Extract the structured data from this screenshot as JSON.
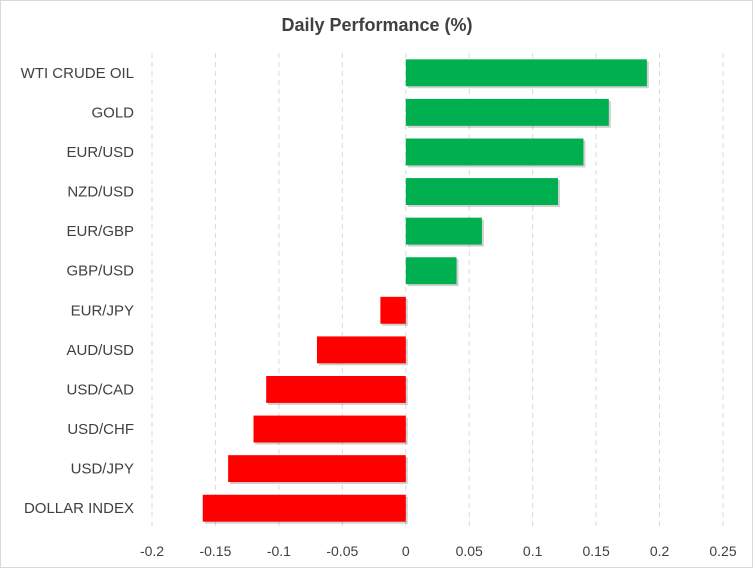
{
  "chart_data": {
    "type": "bar",
    "orientation": "horizontal",
    "title": "Daily Performance (%)",
    "categories": [
      "WTI CRUDE OIL",
      "GOLD",
      "EUR/USD",
      "NZD/USD",
      "EUR/GBP",
      "GBP/USD",
      "EUR/JPY",
      "AUD/USD",
      "USD/CAD",
      "USD/CHF",
      "USD/JPY",
      "DOLLAR INDEX"
    ],
    "values": [
      0.19,
      0.16,
      0.14,
      0.12,
      0.06,
      0.04,
      -0.02,
      -0.07,
      -0.11,
      -0.12,
      -0.14,
      -0.16
    ],
    "xlim": [
      -0.2,
      0.25
    ],
    "xticks": [
      -0.2,
      -0.15,
      -0.1,
      -0.05,
      0,
      0.05,
      0.1,
      0.15,
      0.2,
      0.25
    ],
    "xtick_labels": [
      "-0.2",
      "-0.15",
      "-0.1",
      "-0.05",
      "0",
      "0.05",
      "0.1",
      "0.15",
      "0.2",
      "0.25"
    ],
    "grid": "vertical dashed",
    "colors": {
      "positive": "#00b050",
      "negative": "#ff0000",
      "grid": "#d9d9d9",
      "text": "#404040"
    }
  }
}
